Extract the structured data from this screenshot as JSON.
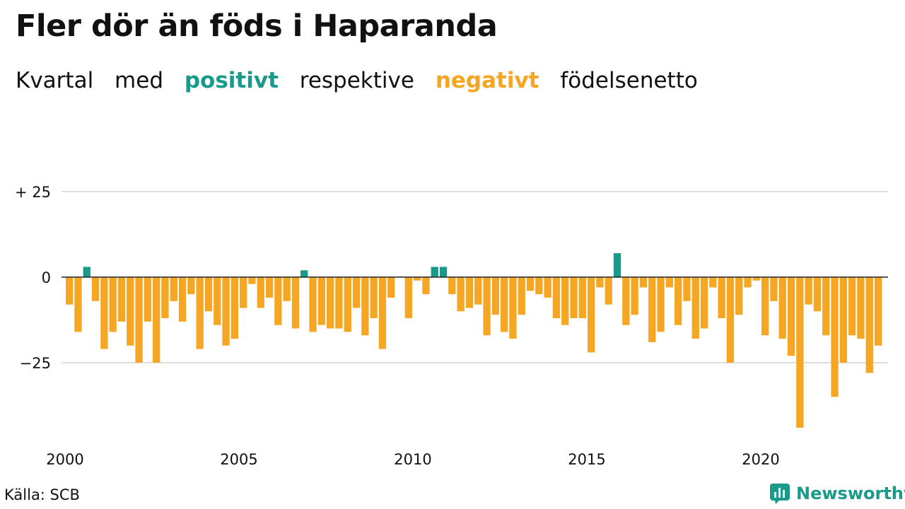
{
  "header": {
    "title": "Fler dör än föds i Haparanda",
    "subtitle": [
      "Kvartal",
      "med",
      "positivt",
      "respektive",
      "negativt",
      "födelsenetto"
    ]
  },
  "footer": {
    "source": "Källa: SCB",
    "brand": "Newsworthy"
  },
  "colors": {
    "positive": "#1a9a8a",
    "negative": "#f5a623",
    "grid": "#dddddd",
    "zero": "#222222"
  },
  "chart_data": {
    "type": "bar",
    "title": "Fler dör än föds i Haparanda",
    "subtitle": "Kvartal med positivt respektive negativt födelsenetto",
    "xlabel": "",
    "ylabel": "",
    "ylim": [
      -45,
      25
    ],
    "xlim": [
      2000,
      2023.75
    ],
    "grid": true,
    "y_ticks": [
      {
        "value": 25,
        "label": "+ 25"
      },
      {
        "value": 0,
        "label": "0"
      },
      {
        "value": -25,
        "label": "−25"
      }
    ],
    "x_ticks": [
      {
        "value": 2000,
        "label": "2000"
      },
      {
        "value": 2005,
        "label": "2005"
      },
      {
        "value": 2010,
        "label": "2010"
      },
      {
        "value": 2015,
        "label": "2015"
      },
      {
        "value": 2020,
        "label": "2020"
      }
    ],
    "series": [
      {
        "x_start": 2000,
        "step": "quarter",
        "values": [
          -8,
          -16,
          3,
          -7,
          -21,
          -16,
          -13,
          -20,
          -25,
          -13,
          -25,
          -12,
          -7,
          -13,
          -5,
          -21,
          -10,
          -14,
          -20,
          -18,
          -9,
          -2,
          -9,
          -6,
          -14,
          -7,
          -15,
          2,
          -16,
          -14,
          -15,
          -15,
          -16,
          -9,
          -17,
          -12,
          -21,
          -6,
          0,
          -12,
          -1,
          -5,
          3,
          3,
          -5,
          -10,
          -9,
          -8,
          -17,
          -11,
          -16,
          -18,
          -11,
          -4,
          -5,
          -6,
          -12,
          -14,
          -12,
          -12,
          -22,
          -3,
          -8,
          7,
          -14,
          -11,
          -3,
          -19,
          -16,
          -3,
          -14,
          -7,
          -18,
          -15,
          -3,
          -12,
          -25,
          -11,
          -3,
          -1,
          -17,
          -7,
          -18,
          -23,
          -44,
          -8,
          -10,
          -17,
          -35,
          -25,
          -17,
          -18,
          -28,
          -20
        ]
      }
    ]
  }
}
